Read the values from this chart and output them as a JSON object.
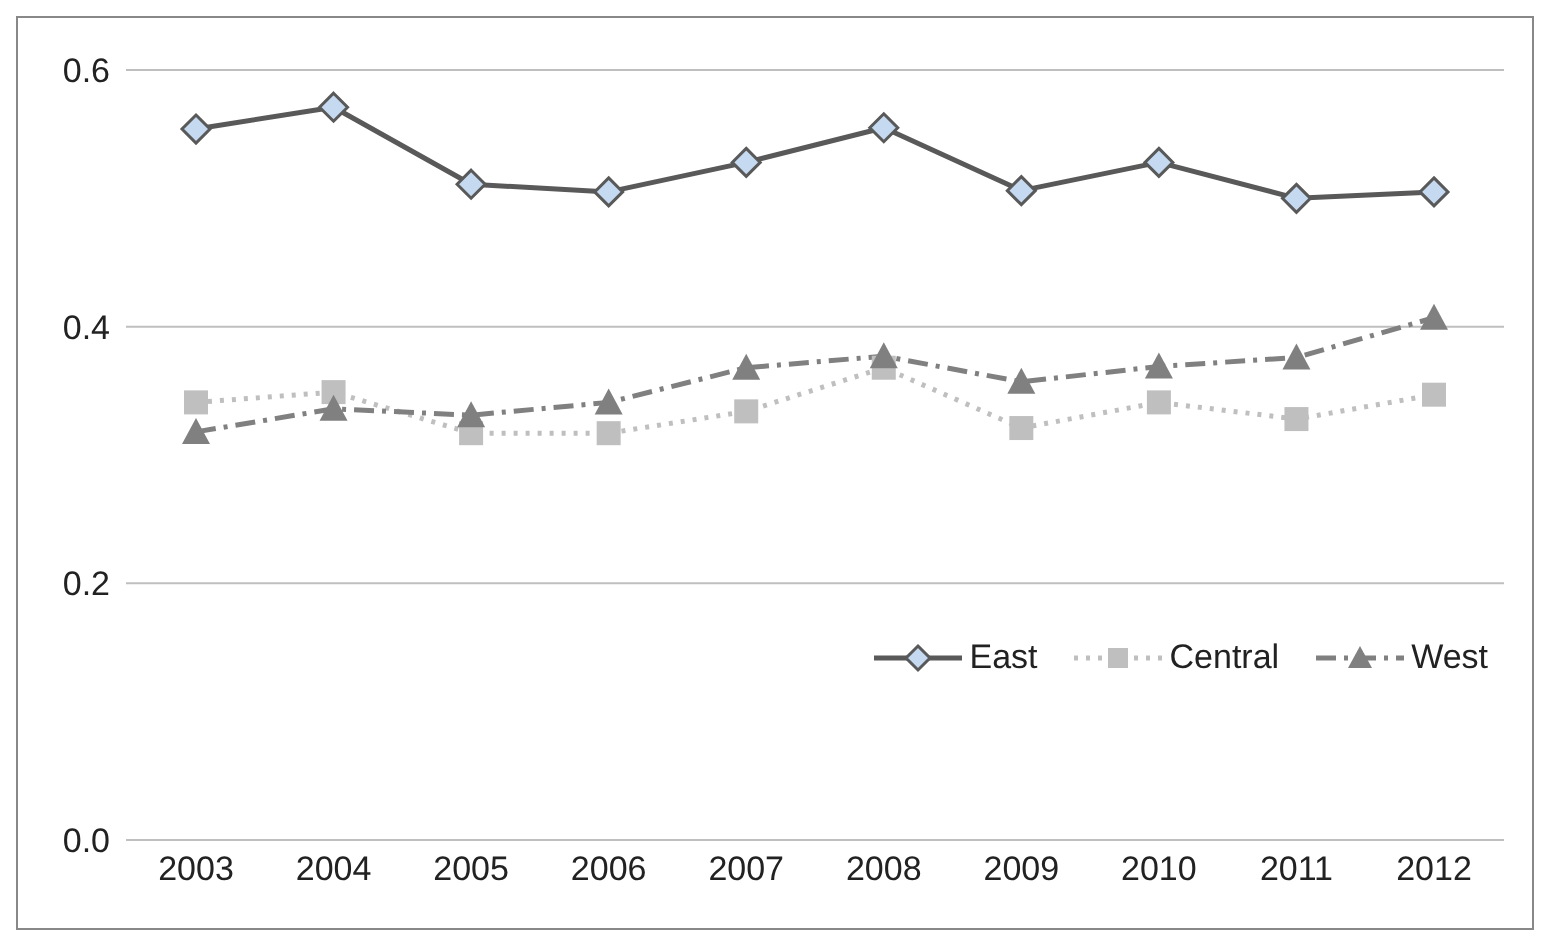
{
  "chart_data": {
    "type": "line",
    "categories": [
      "2003",
      "2004",
      "2005",
      "2006",
      "2007",
      "2008",
      "2009",
      "2010",
      "2011",
      "2012"
    ],
    "series": [
      {
        "name": "East",
        "color": "#595959",
        "marker": "diamond",
        "line_style": "solid",
        "values": [
          0.554,
          0.571,
          0.511,
          0.505,
          0.528,
          0.555,
          0.506,
          0.528,
          0.5,
          0.505
        ]
      },
      {
        "name": "Central",
        "color": "#bfbfbf",
        "marker": "square",
        "line_style": "dotted",
        "values": [
          0.341,
          0.349,
          0.317,
          0.317,
          0.334,
          0.368,
          0.321,
          0.341,
          0.328,
          0.347
        ]
      },
      {
        "name": "West",
        "color": "#808080",
        "marker": "triangle",
        "line_style": "dashed",
        "values": [
          0.318,
          0.336,
          0.331,
          0.341,
          0.368,
          0.377,
          0.357,
          0.369,
          0.376,
          0.407
        ]
      }
    ],
    "ylim": [
      0,
      0.6
    ],
    "yticks": [
      {
        "value": 0,
        "label": "0.0"
      },
      {
        "value": 0.2,
        "label": "0.2"
      },
      {
        "value": 0.4,
        "label": "0.4"
      },
      {
        "value": 0.6,
        "label": "0.6"
      }
    ],
    "grid": "y",
    "legend": "bottom right"
  }
}
